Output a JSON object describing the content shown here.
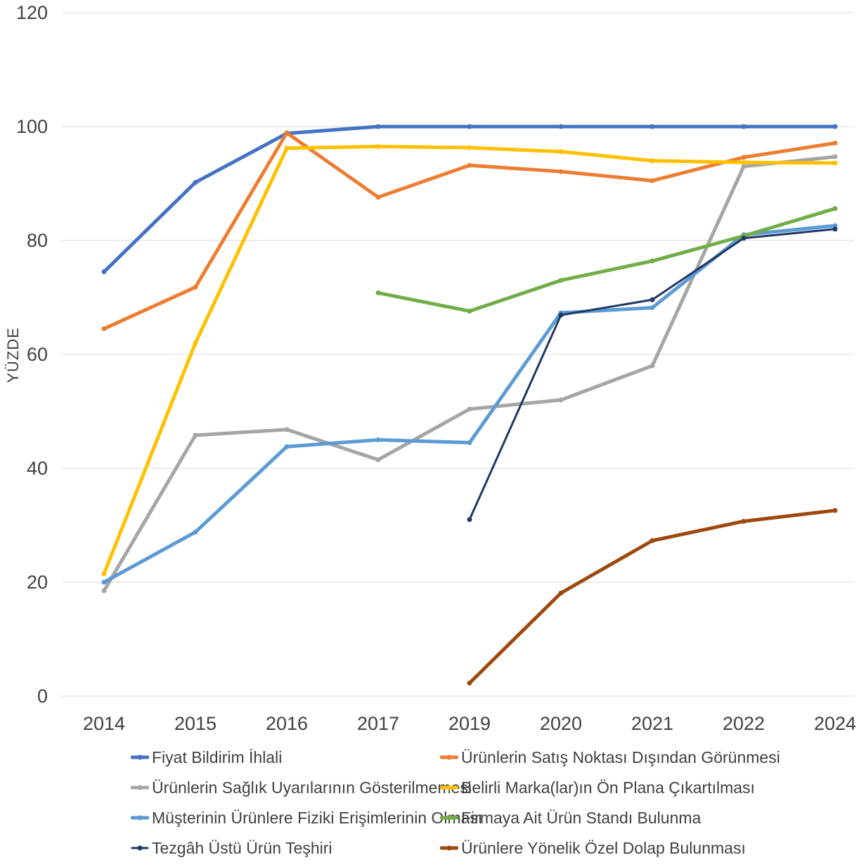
{
  "chart_data": {
    "type": "line",
    "title": "",
    "xlabel": "",
    "ylabel": "YÜZDE",
    "ylim": [
      0,
      120
    ],
    "yticks": [
      0,
      20,
      40,
      60,
      80,
      100,
      120
    ],
    "grid": true,
    "legend_position": "bottom",
    "categories": [
      "2014",
      "2015",
      "2016",
      "2017",
      "2019",
      "2020",
      "2021",
      "2022",
      "2024"
    ],
    "series": [
      {
        "name": "Fiyat Bildirim İhlali",
        "color": "#4472C4",
        "values": [
          74.5,
          90.2,
          98.8,
          100,
          100,
          100,
          100,
          100,
          100
        ]
      },
      {
        "name": "Ürünlerin Satış Noktası Dışından Görünmesi",
        "color": "#ED7D31",
        "values": [
          64.5,
          71.8,
          98.9,
          87.6,
          93.2,
          92.1,
          90.5,
          94.6,
          97.1
        ]
      },
      {
        "name": "Ürünlerin Sağlık Uyarılarının Gösterilmemesi",
        "color": "#A5A5A5",
        "values": [
          18.5,
          45.8,
          46.8,
          41.5,
          50.4,
          52.0,
          58.0,
          93.0,
          94.7
        ]
      },
      {
        "name": "Belirli Marka(lar)ın Ön Plana Çıkartılması",
        "color": "#FFC000",
        "values": [
          21.5,
          62.0,
          96.2,
          96.5,
          96.3,
          95.6,
          94.0,
          93.7,
          93.6
        ]
      },
      {
        "name": "Müşterinin Ürünlere Fiziki Erişimlerinin Olması",
        "color": "#5B9BD5",
        "values": [
          20.0,
          28.8,
          43.8,
          45.0,
          44.5,
          67.3,
          68.2,
          81.0,
          82.6
        ]
      },
      {
        "name": "Firmaya Ait Ürün Standı Bulunma",
        "color": "#70AD47",
        "values": [
          null,
          null,
          null,
          70.8,
          67.6,
          73.0,
          76.4,
          80.8,
          85.6
        ]
      },
      {
        "name": "Tezgâh Üstü Ürün Teşhiri",
        "color": "#203864",
        "values": [
          null,
          null,
          null,
          null,
          31.0,
          66.9,
          69.6,
          80.4,
          82.0
        ]
      },
      {
        "name": "Ürünlere Yönelik Özel Dolap Bulunması",
        "color": "#9E480E",
        "values": [
          null,
          null,
          null,
          null,
          2.3,
          18.1,
          27.3,
          30.7,
          32.6
        ]
      }
    ]
  }
}
